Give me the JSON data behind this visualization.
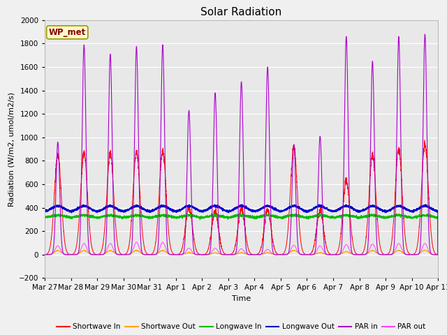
{
  "title": "Solar Radiation",
  "xlabel": "Time",
  "ylabel": "Radiation (W/m2, umol/m2/s)",
  "ylim": [
    -200,
    2000
  ],
  "legend_labels": [
    "Shortwave In",
    "Shortwave Out",
    "Longwave In",
    "Longwave Out",
    "PAR in",
    "PAR out"
  ],
  "legend_colors": [
    "#ff0000",
    "#ffa500",
    "#00bb00",
    "#0000cc",
    "#aa00cc",
    "#ff44ff"
  ],
  "station_label": "WP_met",
  "fig_facecolor": "#f0f0f0",
  "plot_facecolor": "#e8e8e8",
  "grid_color": "#ffffff",
  "yticks": [
    -200,
    0,
    200,
    400,
    600,
    800,
    1000,
    1200,
    1400,
    1600,
    1800,
    2000
  ],
  "xtick_labels": [
    "Mar 27",
    "Mar 28",
    "Mar 29",
    "Mar 30",
    "Mar 31",
    "Apr 1",
    "Apr 2",
    "Apr 3",
    "Apr 4",
    "Apr 5",
    "Apr 6",
    "Apr 7",
    "Apr 8",
    "Apr 9",
    "Apr 10",
    "Apr 11"
  ],
  "num_days": 15,
  "sw_peaks": [
    850,
    870,
    860,
    880,
    880,
    400,
    370,
    390,
    380,
    920,
    380,
    630,
    850,
    900,
    940
  ],
  "par_peaks": [
    960,
    1790,
    1710,
    1775,
    1790,
    1230,
    1380,
    1475,
    1600,
    940,
    1010,
    1860,
    1650,
    1860,
    1880
  ],
  "par_out_peaks": [
    75,
    95,
    95,
    105,
    105,
    55,
    55,
    50,
    45,
    80,
    75,
    85,
    90,
    95,
    95
  ],
  "lw_in_base": 310,
  "lw_out_base": 365
}
